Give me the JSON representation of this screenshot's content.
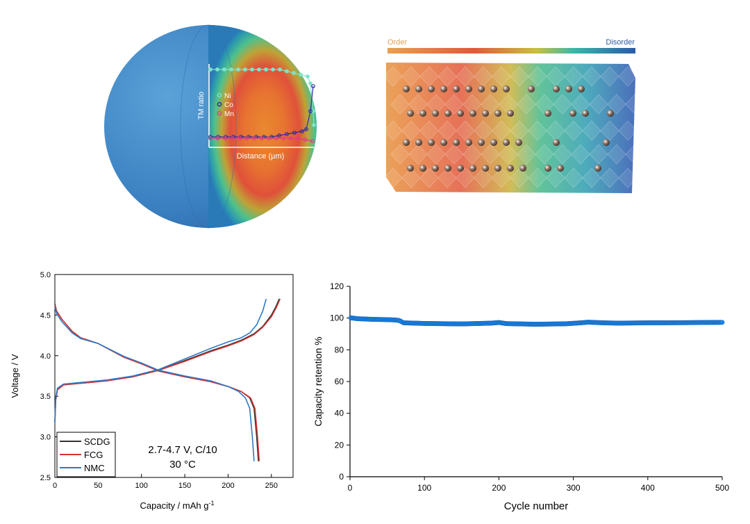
{
  "figure": {
    "sphere_inset": {
      "legend": [
        "Ni",
        "Co",
        "Mn"
      ],
      "legend_colors": [
        "#7fe3c9",
        "#2a2aa6",
        "#e03a8c"
      ],
      "ylabel": "TM ratio",
      "xlabel": "Distance (µm)"
    },
    "lattice": {
      "left_label": "Order",
      "right_label": "Disorder",
      "left_color": "#e8a050",
      "right_color": "#2a5aa8"
    }
  },
  "chart_data": [
    {
      "type": "line",
      "xlabel": "Capacity / mAh g",
      "xlabel_sup": "-1",
      "ylabel": "Voltage / V",
      "xlim": [
        0,
        275
      ],
      "ylim": [
        2.5,
        5.0
      ],
      "xticks": [
        0,
        50,
        100,
        150,
        200,
        250
      ],
      "yticks": [
        2.5,
        3.0,
        3.5,
        4.0,
        4.5,
        5.0
      ],
      "legend": "bottom-left",
      "annotation": [
        "2.7-4.7 V, C/10",
        "30 °C"
      ],
      "series": [
        {
          "name": "SCDG",
          "color": "#333333",
          "charge": [
            [
              0,
              3.18
            ],
            [
              1,
              3.45
            ],
            [
              3,
              3.58
            ],
            [
              10,
              3.64
            ],
            [
              30,
              3.66
            ],
            [
              60,
              3.69
            ],
            [
              90,
              3.74
            ],
            [
              120,
              3.82
            ],
            [
              150,
              3.94
            ],
            [
              180,
              4.06
            ],
            [
              200,
              4.13
            ],
            [
              215,
              4.19
            ],
            [
              230,
              4.27
            ],
            [
              240,
              4.36
            ],
            [
              250,
              4.5
            ],
            [
              255,
              4.6
            ],
            [
              259,
              4.7
            ]
          ],
          "discharge": [
            [
              0,
              4.64
            ],
            [
              2,
              4.55
            ],
            [
              8,
              4.45
            ],
            [
              20,
              4.3
            ],
            [
              30,
              4.22
            ],
            [
              50,
              4.15
            ],
            [
              80,
              3.98
            ],
            [
              100,
              3.9
            ],
            [
              120,
              3.81
            ],
            [
              150,
              3.74
            ],
            [
              180,
              3.68
            ],
            [
              200,
              3.62
            ],
            [
              215,
              3.56
            ],
            [
              225,
              3.48
            ],
            [
              230,
              3.35
            ],
            [
              233,
              3.0
            ],
            [
              235,
              2.7
            ]
          ]
        },
        {
          "name": "FCG",
          "color": "#d93030",
          "charge": [
            [
              0,
              3.2
            ],
            [
              1,
              3.46
            ],
            [
              3,
              3.58
            ],
            [
              10,
              3.64
            ],
            [
              30,
              3.66
            ],
            [
              60,
              3.69
            ],
            [
              90,
              3.74
            ],
            [
              120,
              3.82
            ],
            [
              150,
              3.93
            ],
            [
              180,
              4.05
            ],
            [
              200,
              4.12
            ],
            [
              215,
              4.18
            ],
            [
              230,
              4.26
            ],
            [
              240,
              4.35
            ],
            [
              250,
              4.48
            ],
            [
              256,
              4.6
            ],
            [
              260,
              4.7
            ]
          ],
          "discharge": [
            [
              0,
              4.62
            ],
            [
              2,
              4.55
            ],
            [
              8,
              4.45
            ],
            [
              20,
              4.3
            ],
            [
              30,
              4.22
            ],
            [
              50,
              4.15
            ],
            [
              80,
              3.98
            ],
            [
              100,
              3.9
            ],
            [
              120,
              3.81
            ],
            [
              150,
              3.74
            ],
            [
              180,
              3.68
            ],
            [
              200,
              3.62
            ],
            [
              215,
              3.56
            ],
            [
              226,
              3.48
            ],
            [
              231,
              3.35
            ],
            [
              234,
              3.0
            ],
            [
              236,
              2.7
            ]
          ]
        },
        {
          "name": "NMC",
          "color": "#2b78c8",
          "charge": [
            [
              0,
              3.16
            ],
            [
              1,
              3.48
            ],
            [
              3,
              3.6
            ],
            [
              10,
              3.65
            ],
            [
              30,
              3.67
            ],
            [
              60,
              3.7
            ],
            [
              90,
              3.75
            ],
            [
              120,
              3.83
            ],
            [
              150,
              3.96
            ],
            [
              180,
              4.09
            ],
            [
              200,
              4.17
            ],
            [
              215,
              4.22
            ],
            [
              225,
              4.28
            ],
            [
              233,
              4.38
            ],
            [
              240,
              4.55
            ],
            [
              244,
              4.7
            ]
          ],
          "discharge": [
            [
              0,
              4.6
            ],
            [
              2,
              4.52
            ],
            [
              8,
              4.42
            ],
            [
              20,
              4.28
            ],
            [
              30,
              4.21
            ],
            [
              50,
              4.15
            ],
            [
              80,
              3.99
            ],
            [
              100,
              3.91
            ],
            [
              120,
              3.82
            ],
            [
              150,
              3.75
            ],
            [
              180,
              3.69
            ],
            [
              200,
              3.62
            ],
            [
              212,
              3.56
            ],
            [
              220,
              3.48
            ],
            [
              225,
              3.35
            ],
            [
              228,
              3.0
            ],
            [
              230,
              2.7
            ]
          ]
        }
      ]
    },
    {
      "type": "scatter",
      "xlabel": "Cycle number",
      "ylabel": "Capacity retention %",
      "xlim": [
        0,
        500
      ],
      "ylim": [
        0,
        120
      ],
      "xticks": [
        0,
        100,
        200,
        300,
        400,
        500
      ],
      "yticks": [
        0,
        20,
        40,
        60,
        80,
        100,
        120
      ],
      "color": "#1e88e5",
      "profile": [
        [
          0,
          100.2
        ],
        [
          10,
          99.6
        ],
        [
          30,
          99.2
        ],
        [
          50,
          99.0
        ],
        [
          60,
          98.8
        ],
        [
          66,
          98.5
        ],
        [
          72,
          97.0
        ],
        [
          100,
          96.6
        ],
        [
          150,
          96.3
        ],
        [
          190,
          96.8
        ],
        [
          200,
          97.2
        ],
        [
          210,
          96.5
        ],
        [
          250,
          96.1
        ],
        [
          290,
          96.4
        ],
        [
          310,
          97.0
        ],
        [
          320,
          97.4
        ],
        [
          340,
          97.0
        ],
        [
          360,
          96.8
        ],
        [
          400,
          97.0
        ],
        [
          450,
          97.1
        ],
        [
          500,
          97.3
        ]
      ]
    }
  ]
}
